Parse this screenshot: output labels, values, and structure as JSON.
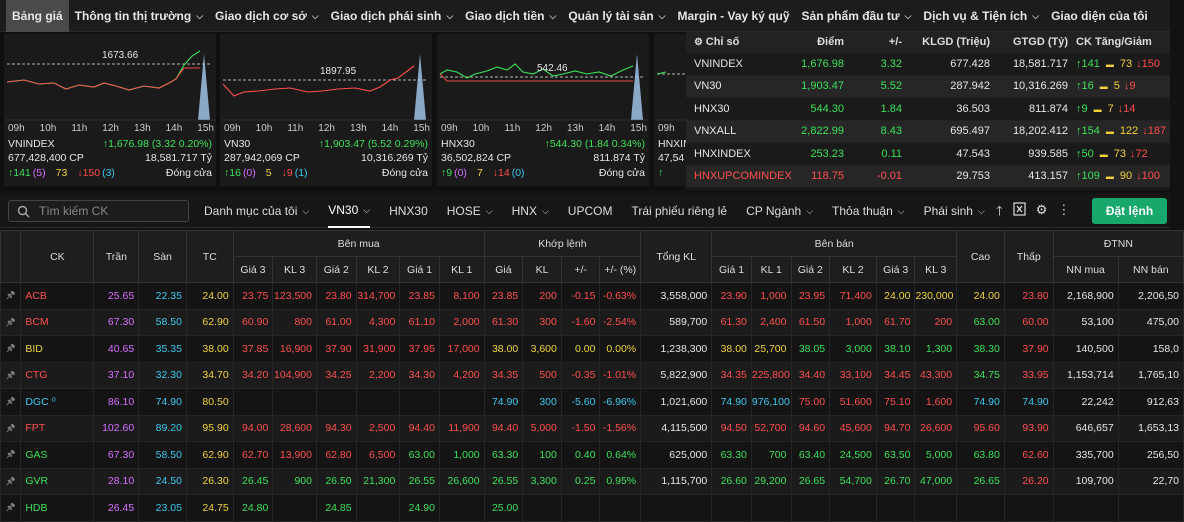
{
  "nav": {
    "items": [
      {
        "label": "Bảng giá",
        "chev": false
      },
      {
        "label": "Thông tin thị trường",
        "chev": true
      },
      {
        "label": "Giao dịch cơ sở",
        "chev": true
      },
      {
        "label": "Giao dịch phái sinh",
        "chev": true
      },
      {
        "label": "Giao dịch tiền",
        "chev": true
      },
      {
        "label": "Quản lý tài sản",
        "chev": true
      },
      {
        "label": "Margin - Vay ký quỹ",
        "chev": false
      },
      {
        "label": "Sản phẩm đầu tư",
        "chev": true
      },
      {
        "label": "Dịch vụ & Tiện ích",
        "chev": true
      },
      {
        "label": "Giao diện của tôi",
        "chev": false
      }
    ]
  },
  "charts": [
    {
      "name": "VNINDEX",
      "ref": "1673.66",
      "change": "↑1,676.98 (3.32 0.20%)",
      "volume": "677,428,400 CP",
      "value": "18,581.717 Tỷ",
      "up": "↑141",
      "up_ceil": "(5)",
      "ref_count": "73",
      "down": "↓150",
      "down_floor": "(3)",
      "status": "Đóng cửa",
      "ticks": [
        "09h",
        "10h",
        "11h",
        "12h",
        "13h",
        "14h",
        "15h"
      ]
    },
    {
      "name": "VN30",
      "ref": "1897.95",
      "change": "↑1,903.47 (5.52 0.29%)",
      "volume": "287,942,069 CP",
      "value": "10,316.269 Tỷ",
      "up": "↑16",
      "up_ceil": "(0)",
      "ref_count": "5",
      "down": "↓9",
      "down_floor": "(1)",
      "status": "Đóng cửa",
      "ticks": [
        "09h",
        "10h",
        "11h",
        "12h",
        "13h",
        "14h",
        "15h"
      ]
    },
    {
      "name": "HNX30",
      "ref": "542.46",
      "change": "↑544.30 (1.84 0.34%)",
      "volume": "36,502,824 CP",
      "value": "811.874 Tỷ",
      "up": "↑9",
      "up_ceil": "(0)",
      "ref_count": "7",
      "down": "↓14",
      "down_floor": "(0)",
      "status": "Đóng cửa",
      "ticks": [
        "09h",
        "10h",
        "11h",
        "12h",
        "13h",
        "14h",
        "15h"
      ]
    },
    {
      "name": "HNXINDEX",
      "ref": "",
      "change": "",
      "volume": "47,54",
      "value": "",
      "up": "↑",
      "up_ceil": "",
      "ref_count": "",
      "down": "",
      "down_floor": "",
      "status": "",
      "ticks": [
        "09h"
      ]
    }
  ],
  "index_table": {
    "headers": {
      "name": "Chỉ số",
      "point": "Điểm",
      "change": "+/-",
      "vol": "KLGD (Triệu)",
      "val": "GTGD (Tỷ)",
      "ck": "CK Tăng/Giảm"
    },
    "rows": [
      {
        "name": "VNINDEX",
        "point": "1,676.98",
        "change": "3.32",
        "vol": "677.428",
        "val": "18,581.717",
        "up": "↑141",
        "ref": "73",
        "down": "↓150",
        "cls": "green"
      },
      {
        "name": "VN30",
        "point": "1,903.47",
        "change": "5.52",
        "vol": "287.942",
        "val": "10,316.269",
        "up": "↑16",
        "ref": "5",
        "down": "↓9",
        "cls": "green"
      },
      {
        "name": "HNX30",
        "point": "544.30",
        "change": "1.84",
        "vol": "36.503",
        "val": "811.874",
        "up": "↑9",
        "ref": "7",
        "down": "↓14",
        "cls": "green"
      },
      {
        "name": "VNXALL",
        "point": "2,822.99",
        "change": "8.43",
        "vol": "695.497",
        "val": "18,202.412",
        "up": "↑154",
        "ref": "122",
        "down": "↓187",
        "cls": "green"
      },
      {
        "name": "HNXINDEX",
        "point": "253.23",
        "change": "0.11",
        "vol": "47.543",
        "val": "939.585",
        "up": "↑50",
        "ref": "73",
        "down": "↓72",
        "cls": "green"
      },
      {
        "name": "HNXUPCOMINDEX",
        "point": "118.75",
        "change": "-0.01",
        "vol": "29.753",
        "val": "413.157",
        "up": "↑109",
        "ref": "90",
        "down": "↓100",
        "cls": "red"
      }
    ]
  },
  "toolbar": {
    "search_placeholder": "Tìm kiếm CK",
    "tabs": [
      {
        "label": "Danh mục của tôi",
        "chev": true,
        "active": false
      },
      {
        "label": "VN30",
        "chev": true,
        "active": true
      },
      {
        "label": "HNX30",
        "chev": false,
        "active": false
      },
      {
        "label": "HOSE",
        "chev": true,
        "active": false
      },
      {
        "label": "HNX",
        "chev": true,
        "active": false
      },
      {
        "label": "UPCOM",
        "chev": false,
        "active": false
      },
      {
        "label": "Trái phiếu riêng lẻ",
        "chev": false,
        "active": false
      },
      {
        "label": "CP Ngành",
        "chev": true,
        "active": false
      },
      {
        "label": "Thỏa thuận",
        "chev": true,
        "active": false
      },
      {
        "label": "Phái sinh",
        "chev": true,
        "active": false
      }
    ],
    "order_button": "Đặt lệnh"
  },
  "grid": {
    "group_headers": {
      "buy": "Bên mua",
      "match": "Khớp lệnh",
      "sell": "Bên bán",
      "foreign": "ĐTNN"
    },
    "col_headers": {
      "ck": "CK",
      "ceil": "Trần",
      "floor": "Sàn",
      "ref": "TC",
      "p3": "Giá 3",
      "v3": "KL 3",
      "p2": "Giá 2",
      "v2": "KL 2",
      "p1": "Giá 1",
      "v1": "KL 1",
      "mp": "Giá",
      "mv": "KL",
      "mc": "+/-",
      "mpct": "+/- (%)",
      "total": "Tổng KL",
      "sp1": "Giá 1",
      "sv1": "KL 1",
      "sp2": "Giá 2",
      "sv2": "KL 2",
      "sp3": "Giá 3",
      "sv3": "KL 3",
      "high": "Cao",
      "low": "Thấp",
      "fbuy": "NN mua",
      "fsell": "NN bán"
    },
    "rows": [
      {
        "sym": "ACB",
        "c": "red",
        "ceil": "25.65",
        "floor": "22.35",
        "ref": "24.00",
        "b": [
          [
            "23.75",
            "123,500",
            "red"
          ],
          [
            "23.80",
            "314,700",
            "red"
          ],
          [
            "23.85",
            "8,100",
            "red"
          ]
        ],
        "m": [
          "23.85",
          "200",
          "-0.15",
          "-0.63%",
          "red"
        ],
        "total": "3,558,000",
        "s": [
          [
            "23.90",
            "1,000",
            "red"
          ],
          [
            "23.95",
            "71,400",
            "red"
          ],
          [
            "24.00",
            "230,000",
            "yellow"
          ]
        ],
        "high": [
          "24.00",
          "yellow"
        ],
        "low": [
          "23.80",
          "red"
        ],
        "fb": "2,168,900",
        "fs": "2,206,50"
      },
      {
        "sym": "BCM",
        "c": "red",
        "ceil": "67.30",
        "floor": "58.50",
        "ref": "62.90",
        "b": [
          [
            "60.90",
            "800",
            "red"
          ],
          [
            "61.00",
            "4,300",
            "red"
          ],
          [
            "61.10",
            "2,000",
            "red"
          ]
        ],
        "m": [
          "61.30",
          "300",
          "-1.60",
          "-2.54%",
          "red"
        ],
        "total": "589,700",
        "s": [
          [
            "61.30",
            "2,400",
            "red"
          ],
          [
            "61.50",
            "1,000",
            "red"
          ],
          [
            "61.70",
            "200",
            "red"
          ]
        ],
        "high": [
          "63.00",
          "green"
        ],
        "low": [
          "60.00",
          "red"
        ],
        "fb": "53,100",
        "fs": "475,00"
      },
      {
        "sym": "BID",
        "c": "yellow",
        "ceil": "40.65",
        "floor": "35.35",
        "ref": "38.00",
        "b": [
          [
            "37.85",
            "16,900",
            "red"
          ],
          [
            "37.90",
            "31,900",
            "red"
          ],
          [
            "37.95",
            "17,000",
            "red"
          ]
        ],
        "m": [
          "38.00",
          "3,600",
          "0.00",
          "0.00%",
          "yellow"
        ],
        "total": "1,238,300",
        "s": [
          [
            "38.00",
            "25,700",
            "yellow"
          ],
          [
            "38.05",
            "3,000",
            "green"
          ],
          [
            "38.10",
            "1,300",
            "green"
          ]
        ],
        "high": [
          "38.30",
          "green"
        ],
        "low": [
          "37.90",
          "red"
        ],
        "fb": "140,500",
        "fs": "158,0"
      },
      {
        "sym": "CTG",
        "c": "red",
        "ceil": "37.10",
        "floor": "32.30",
        "ref": "34.70",
        "b": [
          [
            "34.20",
            "104,900",
            "red"
          ],
          [
            "34.25",
            "2,200",
            "red"
          ],
          [
            "34.30",
            "4,200",
            "red"
          ]
        ],
        "m": [
          "34.35",
          "500",
          "-0.35",
          "-1.01%",
          "red"
        ],
        "total": "5,822,900",
        "s": [
          [
            "34.35",
            "225,800",
            "red"
          ],
          [
            "34.40",
            "33,100",
            "red"
          ],
          [
            "34.45",
            "43,300",
            "red"
          ]
        ],
        "high": [
          "34.75",
          "green"
        ],
        "low": [
          "33.95",
          "red"
        ],
        "fb": "1,153,714",
        "fs": "1,765,10"
      },
      {
        "sym": "DGC ⁰",
        "c": "cyan",
        "ceil": "86.10",
        "floor": "74.90",
        "ref": "80.50",
        "b": [
          [
            "",
            "",
            ""
          ],
          [
            "",
            "",
            ""
          ],
          [
            "",
            "",
            ""
          ]
        ],
        "m": [
          "74.90",
          "300",
          "-5.60",
          "-6.96%",
          "cyan"
        ],
        "total": "1,021,600",
        "s": [
          [
            "74.90",
            "976,100",
            "cyan"
          ],
          [
            "75.00",
            "51,600",
            "red"
          ],
          [
            "75.10",
            "1,600",
            "red"
          ]
        ],
        "high": [
          "74.90",
          "cyan"
        ],
        "low": [
          "74.90",
          "cyan"
        ],
        "fb": "22,242",
        "fs": "912,63"
      },
      {
        "sym": "FPT",
        "c": "red",
        "ceil": "102.60",
        "floor": "89.20",
        "ref": "95.90",
        "b": [
          [
            "94.00",
            "28,600",
            "red"
          ],
          [
            "94.30",
            "2,500",
            "red"
          ],
          [
            "94.40",
            "11,900",
            "red"
          ]
        ],
        "m": [
          "94.40",
          "5,000",
          "-1.50",
          "-1.56%",
          "red"
        ],
        "total": "4,115,500",
        "s": [
          [
            "94.50",
            "52,700",
            "red"
          ],
          [
            "94.60",
            "45,600",
            "red"
          ],
          [
            "94.70",
            "26,600",
            "red"
          ]
        ],
        "high": [
          "95.60",
          "red"
        ],
        "low": [
          "93.90",
          "red"
        ],
        "fb": "646,657",
        "fs": "1,653,13"
      },
      {
        "sym": "GAS",
        "c": "green",
        "ceil": "67.30",
        "floor": "58.50",
        "ref": "62.90",
        "b": [
          [
            "62.70",
            "13,900",
            "red"
          ],
          [
            "62.80",
            "6,500",
            "red"
          ],
          [
            "63.00",
            "1,000",
            "green"
          ]
        ],
        "m": [
          "63.30",
          "100",
          "0.40",
          "0.64%",
          "green"
        ],
        "total": "625,000",
        "s": [
          [
            "63.30",
            "700",
            "green"
          ],
          [
            "63.40",
            "24,500",
            "green"
          ],
          [
            "63.50",
            "5,000",
            "green"
          ]
        ],
        "high": [
          "63.80",
          "green"
        ],
        "low": [
          "62.60",
          "red"
        ],
        "fb": "335,700",
        "fs": "256,50"
      },
      {
        "sym": "GVR",
        "c": "green",
        "ceil": "28.10",
        "floor": "24.50",
        "ref": "26.30",
        "b": [
          [
            "26.45",
            "900",
            "green"
          ],
          [
            "26.50",
            "21,300",
            "green"
          ],
          [
            "26.55",
            "26,600",
            "green"
          ]
        ],
        "m": [
          "26.55",
          "3,300",
          "0.25",
          "0.95%",
          "green"
        ],
        "total": "1,115,700",
        "s": [
          [
            "26.60",
            "29,200",
            "green"
          ],
          [
            "26.65",
            "54,700",
            "green"
          ],
          [
            "26.70",
            "47,000",
            "green"
          ]
        ],
        "high": [
          "26.65",
          "green"
        ],
        "low": [
          "26.20",
          "red"
        ],
        "fb": "109,700",
        "fs": "22,70"
      },
      {
        "sym": "HDB",
        "c": "green",
        "ceil": "26.45",
        "floor": "23.05",
        "ref": "24.75",
        "b": [
          [
            "24.80",
            "",
            "green"
          ],
          [
            "24.85",
            "",
            "green"
          ],
          [
            "24.90",
            "",
            "green"
          ]
        ],
        "m": [
          "25.00",
          "",
          "",
          "",
          "green"
        ],
        "total": "",
        "s": [
          [
            "",
            "",
            "green"
          ],
          [
            "",
            "",
            "green"
          ],
          [
            "",
            "",
            "green"
          ]
        ],
        "high": [
          "",
          "green"
        ],
        "low": [
          "",
          "red"
        ],
        "fb": "",
        "fs": ""
      }
    ]
  },
  "colors": {
    "up": "#3ce05a",
    "down": "#ff4e4e",
    "ref": "#f0d33c",
    "ceil": "#d76fff",
    "floor": "#39c9ef",
    "accent": "#18a86b"
  }
}
